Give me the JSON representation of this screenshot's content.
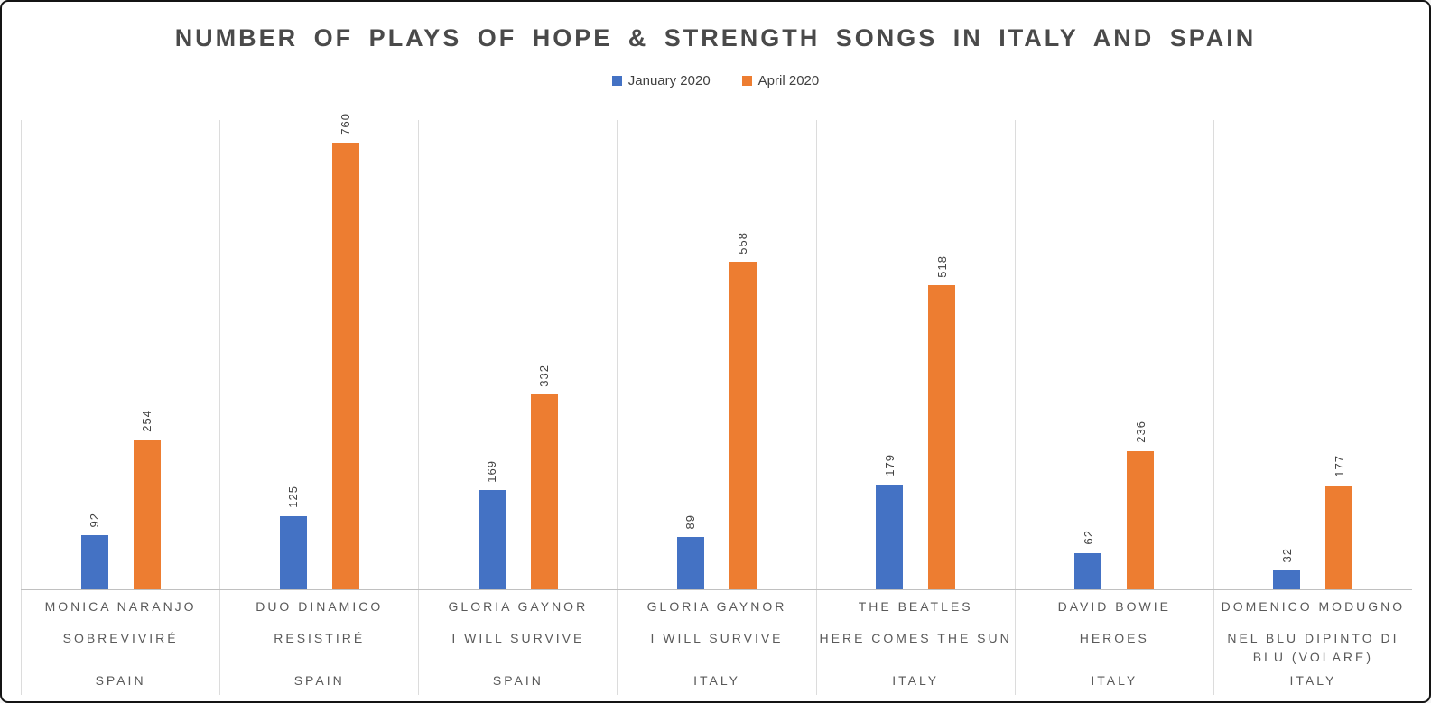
{
  "colors": {
    "january_blue": "#4472C4",
    "april_orange": "#ED7D31",
    "title_text": "#4A4A4A",
    "category_label_text": "#595959",
    "value_label_text": "#404040",
    "gridline": "#DCDCDC",
    "axis_line": "#C0C0C0"
  },
  "chart_data": {
    "type": "bar",
    "title": "NUMBER OF PLAYS OF HOPE & STRENGTH SONGS IN ITALY AND SPAIN",
    "legend_position": "top-center",
    "orientation": "vertical-grouped",
    "grid": "vertical category separators only, no horizontal gridlines, no y-axis ticks",
    "value_labels": "rotated 90 degrees above each bar",
    "ylim": [
      0,
      800
    ],
    "categories": [
      {
        "artist": "MONICA NARANJO",
        "song": "SOBREVIVIRÉ",
        "country": "SPAIN"
      },
      {
        "artist": "DUO DINAMICO",
        "song": "RESISTIRÉ",
        "country": "SPAIN"
      },
      {
        "artist": "GLORIA GAYNOR",
        "song": "I WILL SURVIVE",
        "country": "SPAIN"
      },
      {
        "artist": "GLORIA GAYNOR",
        "song": "I WILL SURVIVE",
        "country": "ITALY"
      },
      {
        "artist": "THE BEATLES",
        "song": "HERE COMES THE SUN",
        "country": "ITALY"
      },
      {
        "artist": "DAVID BOWIE",
        "song": "HEROES",
        "country": "ITALY"
      },
      {
        "artist": "DOMENICO MODUGNO",
        "song": "NEL BLU DIPINTO DI BLU (VOLARE)",
        "country": "ITALY"
      }
    ],
    "series": [
      {
        "name": "January 2020",
        "color": "#4472C4",
        "values": [
          92,
          125,
          169,
          89,
          179,
          62,
          32
        ]
      },
      {
        "name": "April 2020",
        "color": "#ED7D31",
        "values": [
          254,
          760,
          332,
          558,
          518,
          236,
          177
        ]
      }
    ]
  }
}
